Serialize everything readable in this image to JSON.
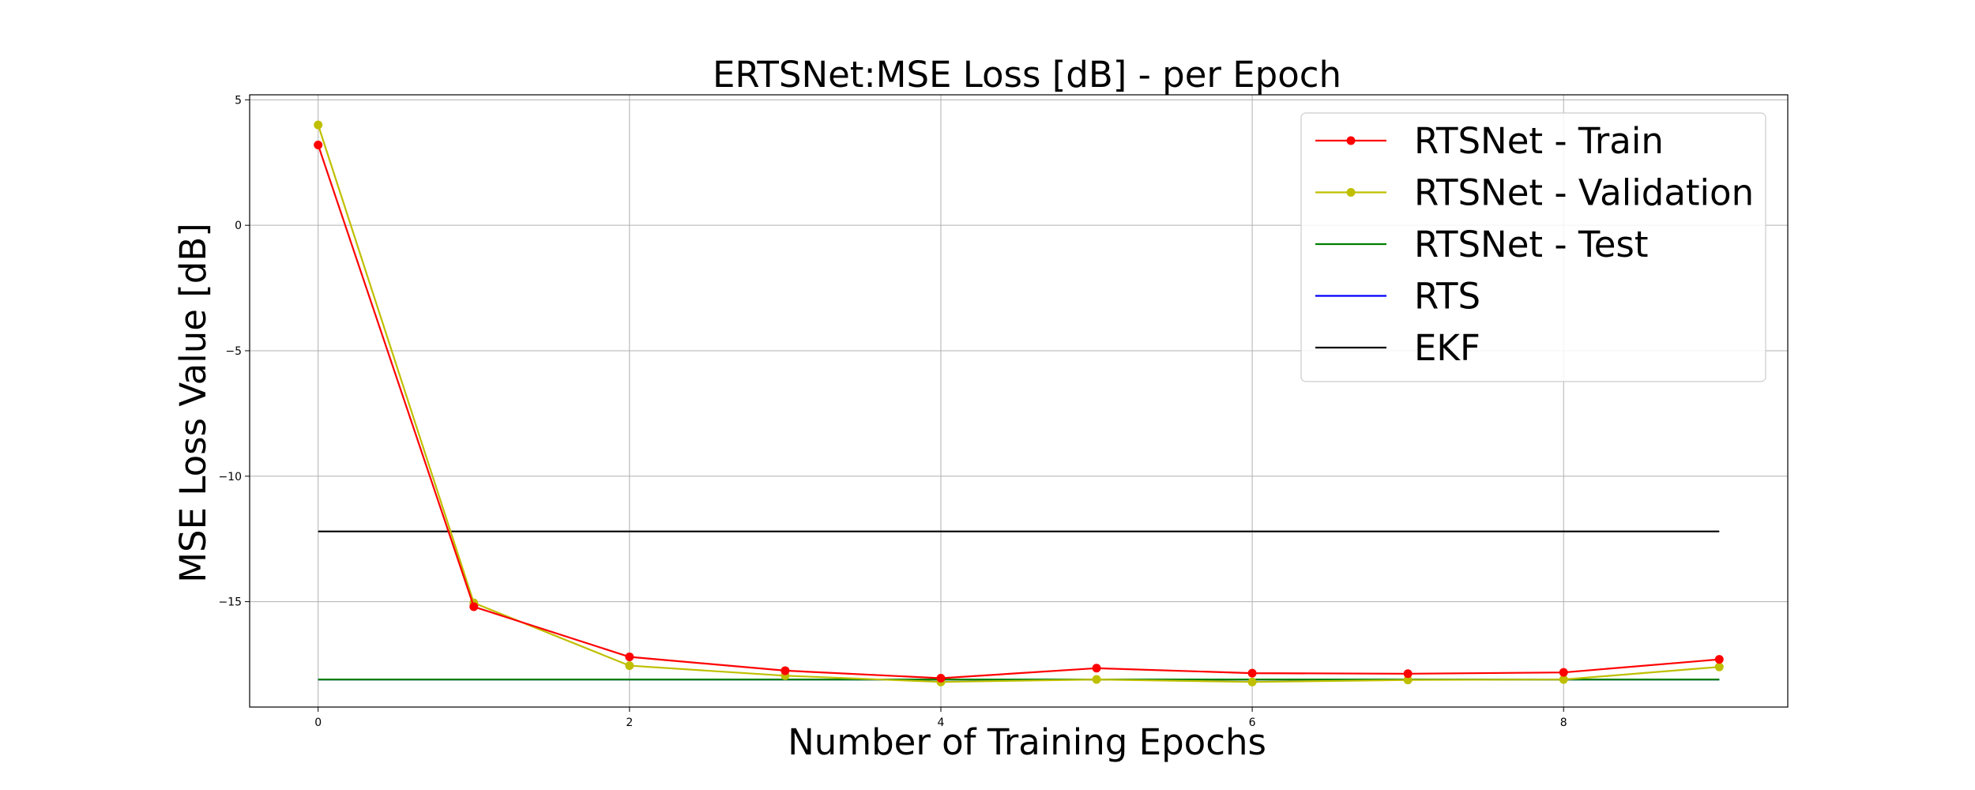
{
  "chart_data": {
    "type": "line",
    "title": "ERTSNet:MSE Loss [dB] - per Epoch",
    "xlabel": "Number of Training Epochs",
    "ylabel": "MSE Loss Value [dB]",
    "xlim": [
      -0.44,
      9.44
    ],
    "ylim": [
      -19.2,
      5.2
    ],
    "xticks": [
      0,
      2,
      4,
      6,
      8
    ],
    "yticks": [
      5,
      0,
      -5,
      -10,
      -15
    ],
    "xtick_labels": [
      "0",
      "2",
      "4",
      "6",
      "8"
    ],
    "ytick_labels": [
      "5",
      "0",
      "−5",
      "−10",
      "−15"
    ],
    "grid": true,
    "legend_position": "top-right",
    "series": [
      {
        "name": "RTSNet - Train",
        "color": "#ff0000",
        "marker": true,
        "x": [
          0,
          1,
          2,
          3,
          4,
          5,
          6,
          7,
          8,
          9
        ],
        "values": [
          3.2,
          -15.2,
          -17.2,
          -17.75,
          -18.05,
          -17.65,
          -17.85,
          -17.87,
          -17.82,
          -17.3
        ]
      },
      {
        "name": "RTSNet - Validation",
        "color": "#bfbf00",
        "marker": true,
        "x": [
          0,
          1,
          2,
          3,
          4,
          5,
          6,
          7,
          8,
          9
        ],
        "values": [
          4.0,
          -15.05,
          -17.55,
          -17.95,
          -18.2,
          -18.1,
          -18.2,
          -18.12,
          -18.1,
          -17.6
        ]
      },
      {
        "name": "RTSNet - Test",
        "color": "#008000",
        "marker": false,
        "x": [
          0,
          9
        ],
        "values": [
          -18.1,
          -18.1
        ]
      },
      {
        "name": "RTS",
        "color": "#0000ff",
        "marker": false,
        "x": [
          0,
          9
        ],
        "values": [
          -18.1,
          -18.1
        ]
      },
      {
        "name": "EKF",
        "color": "#000000",
        "marker": false,
        "x": [
          0,
          9
        ],
        "values": [
          -12.2,
          -12.2
        ]
      }
    ]
  }
}
